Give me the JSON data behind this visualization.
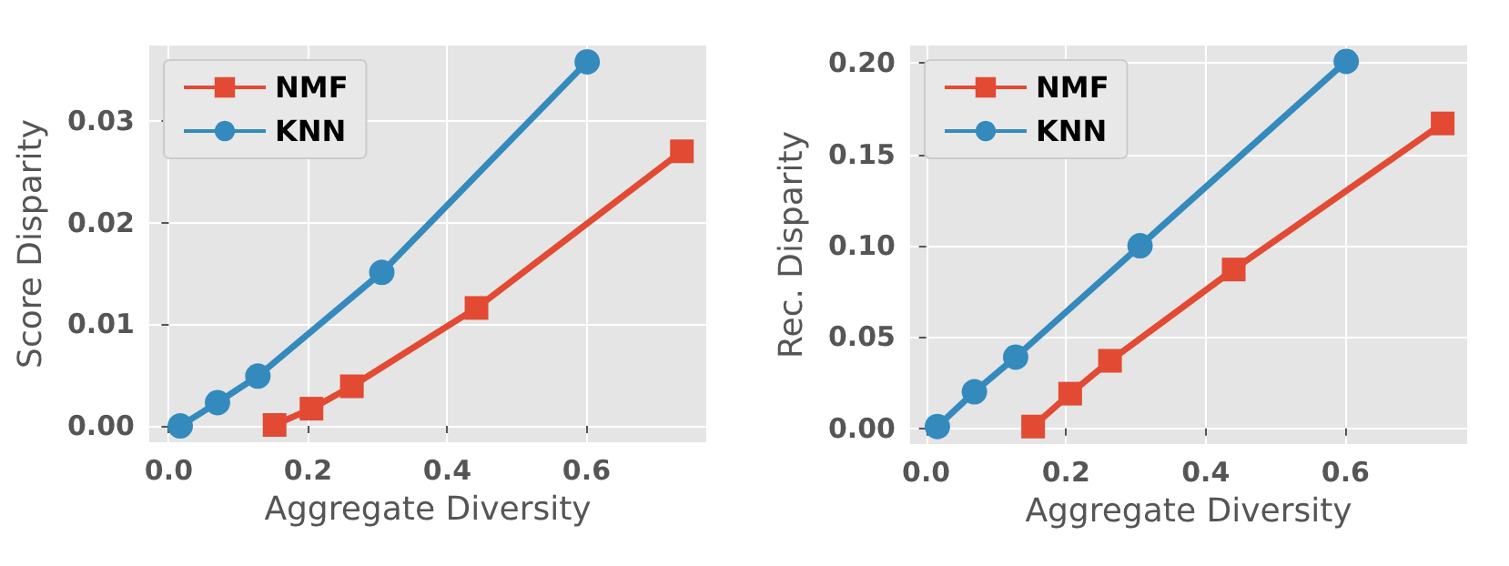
{
  "chart_data": [
    {
      "type": "line",
      "xlabel": "Aggregate Diversity",
      "ylabel": "Score Disparity",
      "xlim": [
        -0.028,
        0.772
      ],
      "ylim": [
        -0.0016,
        0.0374
      ],
      "xticks": [
        {
          "value": 0,
          "label": "0.0"
        },
        0.2,
        0.4,
        0.6
      ],
      "yticks": [
        {
          "value": 0,
          "label": "0.00"
        },
        0.01,
        0.02,
        0.03
      ],
      "grid": true,
      "legend": "top left",
      "series": [
        {
          "name": "NMF",
          "color": "#e24a33",
          "marker": "square",
          "x": [
            0.152,
            0.205,
            0.263,
            0.442,
            0.737
          ],
          "values": [
            0.0001,
            0.0017,
            0.0039,
            0.0116,
            0.027
          ]
        },
        {
          "name": "KNN",
          "color": "#348abd",
          "marker": "circle",
          "x": [
            0.0165,
            0.07,
            0.128,
            0.306,
            0.601
          ],
          "values": [
            0,
            0.0023,
            0.0049,
            0.0151,
            0.0358
          ]
        }
      ]
    },
    {
      "type": "line",
      "xlabel": "Aggregate Diversity",
      "ylabel": "Rec. Disparity",
      "xlim": [
        -0.023,
        0.774
      ],
      "ylim": [
        -0.0086,
        0.2097
      ],
      "xticks": [
        {
          "value": 0,
          "label": "0.0"
        },
        0.2,
        0.4,
        0.6
      ],
      "yticks": [
        {
          "value": 0,
          "label": "0.00"
        },
        0.05,
        {
          "value": 0.1,
          "label": "0.10"
        },
        0.15,
        {
          "value": 0.2,
          "label": "0.20"
        }
      ],
      "grid": true,
      "legend": "top left",
      "series": [
        {
          "name": "NMF",
          "color": "#e24a33",
          "marker": "square",
          "x": [
            0.153,
            0.206,
            0.263,
            0.44,
            0.739
          ],
          "values": [
            0.001,
            0.019,
            0.037,
            0.087,
            0.167
          ]
        },
        {
          "name": "KNN",
          "color": "#348abd",
          "marker": "circle",
          "x": [
            0.016,
            0.069,
            0.128,
            0.306,
            0.601
          ],
          "values": [
            0.001,
            0.02,
            0.039,
            0.1,
            0.201
          ]
        }
      ]
    }
  ]
}
